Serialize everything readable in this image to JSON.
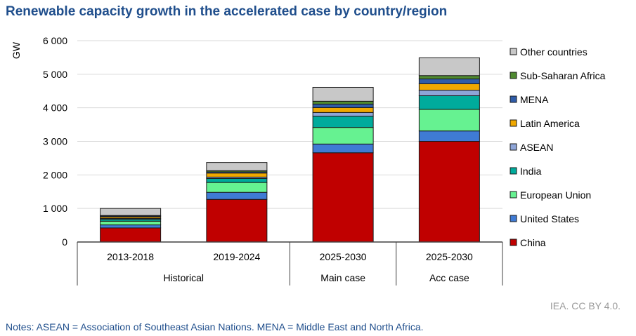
{
  "title": "Renewable capacity growth in the accelerated case by country/region",
  "source": "IEA. CC BY 4.0.",
  "notes": "Notes: ASEAN = Association of Southeast Asian Nations. MENA = Middle East and North Africa.",
  "chart_data": {
    "type": "bar",
    "stacked": true,
    "ylabel": "GW",
    "ylim": [
      0,
      6000
    ],
    "yticks": [
      0,
      1000,
      2000,
      3000,
      4000,
      5000,
      6000
    ],
    "ytick_labels": [
      "0",
      "1 000",
      "2 000",
      "3 000",
      "4 000",
      "5 000",
      "6 000"
    ],
    "categories": [
      "2013-2018",
      "2019-2024",
      "2025-2030",
      "2025-2030"
    ],
    "groups": [
      {
        "label": "Historical",
        "categories": [
          0,
          1
        ]
      },
      {
        "label": "Main case",
        "categories": [
          2
        ]
      },
      {
        "label": "Acc case",
        "categories": [
          3
        ]
      }
    ],
    "legend_position": "right",
    "series": [
      {
        "name": "China",
        "color": "#c00000",
        "values": [
          420,
          1270,
          2660,
          3000
        ]
      },
      {
        "name": "United States",
        "color": "#3f7bd4",
        "values": [
          90,
          210,
          260,
          310
        ]
      },
      {
        "name": "European Union",
        "color": "#66f291",
        "values": [
          110,
          295,
          495,
          645
        ]
      },
      {
        "name": "India",
        "color": "#00ab9c",
        "values": [
          55,
          120,
          335,
          405
        ]
      },
      {
        "name": "ASEAN",
        "color": "#8ea5d8",
        "values": [
          25,
          40,
          110,
          165
        ]
      },
      {
        "name": "Latin America",
        "color": "#f0a800",
        "values": [
          45,
          120,
          145,
          190
        ]
      },
      {
        "name": "MENA",
        "color": "#2f5ca8",
        "values": [
          25,
          35,
          105,
          145
        ]
      },
      {
        "name": "Sub-Saharan Africa",
        "color": "#4f8a30",
        "values": [
          20,
          35,
          85,
          100
        ]
      },
      {
        "name": "Other countries",
        "color": "#c8c8c8",
        "values": [
          210,
          245,
          415,
          530
        ]
      }
    ]
  }
}
